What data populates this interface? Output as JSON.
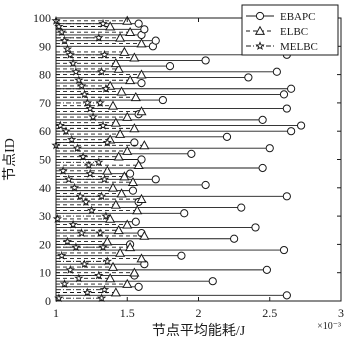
{
  "chart_data": {
    "type": "line",
    "orientation": "horizontal",
    "title": "",
    "xlabel": "节点平均能耗/J",
    "ylabel": "节点ID",
    "x_multiplier_label": "×10⁻³",
    "xlim": [
      1,
      3
    ],
    "ylim": [
      0,
      100
    ],
    "xticks": [
      "1",
      "1.5",
      "2",
      "2.5",
      "3"
    ],
    "yticks": [
      "0",
      "10",
      "20",
      "30",
      "40",
      "50",
      "60",
      "70",
      "80",
      "90",
      "100"
    ],
    "grid": false,
    "legend_position": "top-right",
    "series": [
      {
        "name": "EBAPC",
        "marker": "circle",
        "line_style": "solid",
        "y": [
          2,
          5,
          7,
          9,
          11,
          13,
          16,
          18,
          20,
          22,
          24,
          26,
          28,
          31,
          33,
          35,
          37,
          39,
          41,
          43,
          45,
          47,
          50,
          52,
          54,
          56,
          58,
          60,
          62,
          64,
          66,
          68,
          71,
          73,
          75,
          77,
          79,
          81,
          83,
          85,
          87,
          90,
          92,
          94,
          96,
          98
        ],
        "x": [
          2.62,
          1.58,
          2.1,
          1.55,
          2.48,
          1.62,
          1.88,
          2.6,
          1.52,
          2.25,
          1.6,
          2.4,
          1.56,
          1.9,
          2.3,
          1.58,
          2.62,
          1.54,
          2.05,
          1.7,
          1.52,
          2.45,
          1.6,
          1.95,
          2.5,
          1.55,
          2.2,
          2.65,
          2.72,
          2.45,
          1.58,
          2.62,
          1.75,
          2.6,
          2.65,
          1.6,
          2.35,
          2.55,
          1.8,
          2.05,
          2.62,
          1.68,
          1.7,
          1.6,
          1.62,
          1.58
        ]
      },
      {
        "name": "ELBC",
        "marker": "triangle",
        "line_style": "dashed",
        "y": [
          3,
          6,
          8,
          10,
          12,
          15,
          17,
          19,
          21,
          23,
          25,
          27,
          29,
          32,
          34,
          36,
          38,
          40,
          42,
          44,
          46,
          48,
          51,
          53,
          55,
          57,
          59,
          61,
          63,
          65,
          67,
          69,
          72,
          74,
          76,
          78,
          80,
          82,
          84,
          86,
          88,
          91,
          93,
          95,
          97,
          99
        ],
        "x": [
          1.42,
          1.5,
          1.38,
          1.55,
          1.4,
          1.6,
          1.45,
          1.52,
          1.36,
          1.62,
          1.44,
          1.5,
          1.38,
          1.57,
          1.42,
          1.6,
          1.46,
          1.4,
          1.54,
          1.48,
          1.36,
          1.58,
          1.44,
          1.5,
          1.62,
          1.38,
          1.45,
          1.55,
          1.42,
          1.5,
          1.6,
          1.4,
          1.56,
          1.46,
          1.38,
          1.52,
          1.6,
          1.44,
          1.42,
          1.55,
          1.48,
          1.6,
          1.45,
          1.52,
          1.38,
          1.5
        ]
      },
      {
        "name": "MELBC",
        "marker": "star",
        "line_style": "dash-dot",
        "y": [
          1,
          4,
          9,
          14,
          19,
          24,
          30,
          37,
          43,
          49,
          56,
          62,
          70,
          75,
          81,
          87,
          93,
          98
        ],
        "x": [
          1.32,
          1.34,
          1.3,
          1.36,
          1.33,
          1.31,
          1.35,
          1.32,
          1.34,
          1.3,
          1.36,
          1.33,
          1.31,
          1.35,
          1.32,
          1.34,
          1.3,
          1.33
        ],
        "scatter_x": [
          1.0,
          1.02,
          1.04,
          1.06,
          1.08,
          1.1,
          1.12,
          1.14,
          1.16,
          1.18,
          1.2,
          1.22,
          1.24,
          1.26,
          1.03,
          1.07,
          1.11,
          1.15,
          1.19,
          1.23,
          1.05,
          1.09,
          1.13,
          1.17,
          1.21,
          1.25,
          1.01,
          1.12,
          1.18,
          1.08,
          1.14,
          1.04,
          1.2,
          1.1,
          1.16,
          1.06,
          1.22,
          1.02,
          1.24,
          1.0
        ],
        "scatter_y": [
          99,
          97,
          95,
          92,
          89,
          87,
          84,
          81,
          78,
          76,
          73,
          70,
          68,
          65,
          62,
          60,
          57,
          54,
          51,
          48,
          46,
          43,
          40,
          37,
          35,
          32,
          29,
          27,
          24,
          21,
          19,
          16,
          13,
          11,
          8,
          6,
          3,
          1,
          45,
          55
        ]
      }
    ]
  }
}
